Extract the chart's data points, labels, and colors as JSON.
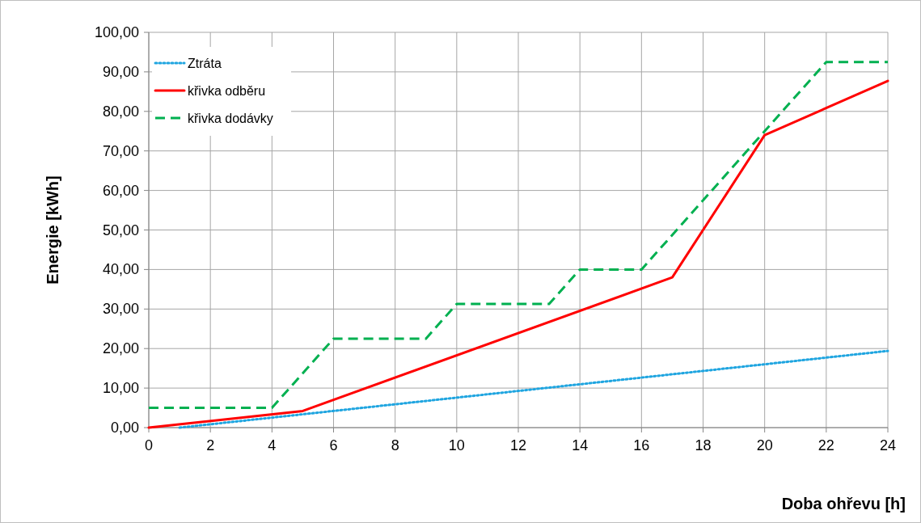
{
  "chart_data": {
    "type": "line",
    "xlabel": "Doba ohřevu [h]",
    "ylabel": "Energie [kWh]",
    "xlim": [
      0,
      24
    ],
    "xticks": [
      0,
      2,
      4,
      6,
      8,
      10,
      12,
      14,
      16,
      18,
      20,
      22,
      24
    ],
    "ylim": [
      0,
      100
    ],
    "yticks": [
      {
        "value": 0,
        "label": "0,00"
      },
      {
        "value": 10,
        "label": "10,00"
      },
      {
        "value": 20,
        "label": "20,00"
      },
      {
        "value": 30,
        "label": "30,00"
      },
      {
        "value": 40,
        "label": "40,00"
      },
      {
        "value": 50,
        "label": "50,00"
      },
      {
        "value": 60,
        "label": "60,00"
      },
      {
        "value": 70,
        "label": "70,00"
      },
      {
        "value": 80,
        "label": "80,00"
      },
      {
        "value": 90,
        "label": "90,00"
      },
      {
        "value": 100,
        "label": "100,00"
      }
    ],
    "grid": true,
    "legend": "top left",
    "marker": "none",
    "series": [
      {
        "name": "Ztráta",
        "color": "#1fa5e0",
        "line_style": "dotted",
        "x": [
          1,
          24
        ],
        "values": [
          0,
          19.4
        ]
      },
      {
        "name": "křivka odběru",
        "color": "#ff0000",
        "line_style": "solid",
        "x": [
          0,
          5,
          17,
          20,
          24
        ],
        "values": [
          0,
          4.2,
          38,
          74,
          87.7
        ]
      },
      {
        "name": "křivka dodávky",
        "color": "#00b050",
        "line_style": "dashed",
        "x": [
          0,
          4,
          6,
          9,
          10,
          13,
          14,
          16,
          20,
          22,
          24
        ],
        "values": [
          5,
          5,
          22.5,
          22.5,
          31.3,
          31.3,
          40,
          40,
          75,
          92.5,
          92.5
        ]
      }
    ]
  }
}
